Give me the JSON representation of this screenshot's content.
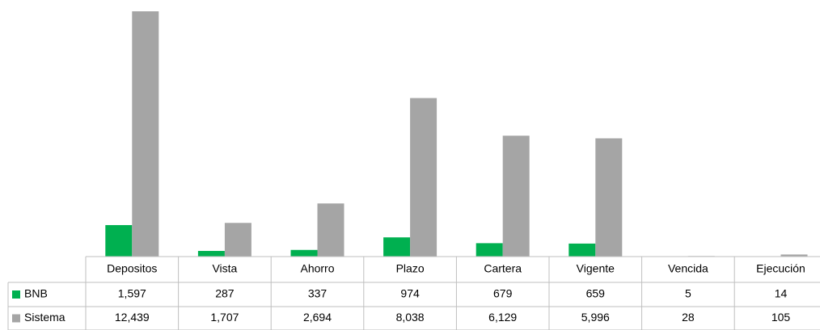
{
  "chart_data": {
    "type": "bar",
    "categories": [
      "Depositos",
      "Vista",
      "Ahorro",
      "Plazo",
      "Cartera",
      "Vigente",
      "Vencida",
      "Ejecución"
    ],
    "series": [
      {
        "name": "BNB",
        "color": "#00b050",
        "values": [
          1597,
          287,
          337,
          974,
          679,
          659,
          5,
          14
        ],
        "value_labels": [
          "1,597",
          "287",
          "337",
          "974",
          "679",
          "659",
          "5",
          "14"
        ]
      },
      {
        "name": "Sistema",
        "color": "#a5a5a5",
        "values": [
          12439,
          1707,
          2694,
          8038,
          6129,
          5996,
          28,
          105
        ],
        "value_labels": [
          "12,439",
          "1,707",
          "2,694",
          "8,038",
          "6,129",
          "5,996",
          "28",
          "105"
        ]
      }
    ]
  }
}
